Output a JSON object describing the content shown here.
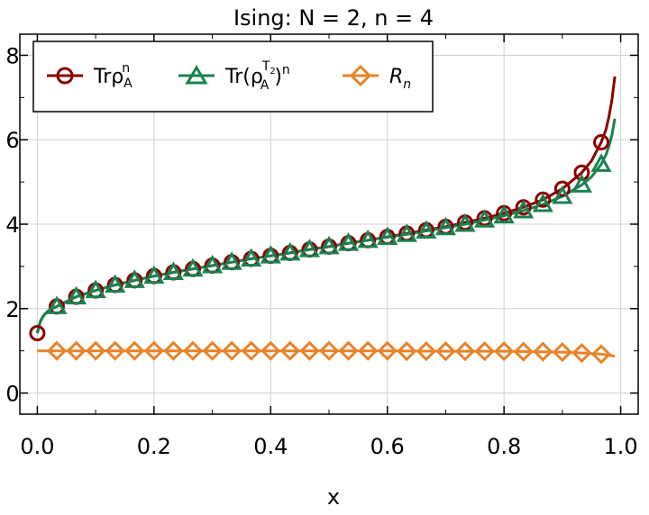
{
  "chart_data": {
    "type": "line",
    "title": "Ising: N = 2, n = 4",
    "xlabel": "x",
    "ylabel": "",
    "xlim": [
      -0.03,
      1.03
    ],
    "ylim": [
      -0.5,
      8.5
    ],
    "xticks": [
      0.0,
      0.2,
      0.4,
      0.6,
      0.8,
      1.0
    ],
    "xtick_labels": [
      "0.0",
      "0.2",
      "0.4",
      "0.6",
      "0.8",
      "1.0"
    ],
    "yticks": [
      0,
      2,
      4,
      6,
      8
    ],
    "ytick_labels": [
      "0",
      "2",
      "4",
      "6",
      "8"
    ],
    "grid": true,
    "legend_position": "top",
    "series": [
      {
        "name": "Trρ_A^n",
        "name_parts": {
          "base": "Trρ",
          "sub": "A",
          "sup": "n"
        },
        "color": "#8b0000",
        "marker": "circle",
        "x": [
          0.0,
          0.0333,
          0.0667,
          0.1,
          0.1333,
          0.1667,
          0.2,
          0.2333,
          0.2667,
          0.3,
          0.3333,
          0.3667,
          0.4,
          0.4333,
          0.4667,
          0.5,
          0.5333,
          0.5667,
          0.6,
          0.6333,
          0.6667,
          0.7,
          0.7333,
          0.7667,
          0.8,
          0.8333,
          0.8667,
          0.9,
          0.9333,
          0.9667
        ],
        "y": [
          1.42,
          2.05,
          2.28,
          2.43,
          2.56,
          2.67,
          2.77,
          2.86,
          2.94,
          3.02,
          3.1,
          3.18,
          3.25,
          3.32,
          3.4,
          3.47,
          3.55,
          3.62,
          3.7,
          3.78,
          3.86,
          3.94,
          4.04,
          4.14,
          4.26,
          4.4,
          4.58,
          4.84,
          5.22,
          5.94
        ],
        "line_x": [
          0.0,
          0.003,
          0.006,
          0.01,
          0.015,
          0.02,
          0.0333,
          0.0667,
          0.1,
          0.1333,
          0.1667,
          0.2,
          0.2333,
          0.2667,
          0.3,
          0.3333,
          0.3667,
          0.4,
          0.4333,
          0.4667,
          0.5,
          0.5333,
          0.5667,
          0.6,
          0.6333,
          0.6667,
          0.7,
          0.7333,
          0.7667,
          0.8,
          0.8333,
          0.8667,
          0.9,
          0.9333,
          0.95,
          0.9667,
          0.975,
          0.98,
          0.985,
          0.99
        ],
        "line_y": [
          1.42,
          1.6,
          1.72,
          1.82,
          1.9,
          1.96,
          2.05,
          2.28,
          2.43,
          2.56,
          2.67,
          2.77,
          2.86,
          2.94,
          3.02,
          3.1,
          3.18,
          3.25,
          3.32,
          3.4,
          3.47,
          3.55,
          3.62,
          3.7,
          3.78,
          3.86,
          3.94,
          4.04,
          4.14,
          4.26,
          4.4,
          4.58,
          4.84,
          5.22,
          5.5,
          5.94,
          6.25,
          6.55,
          6.95,
          7.5
        ]
      },
      {
        "name": "Tr(ρ_A^T2)^n",
        "name_parts": {
          "prefix": "Tr(",
          "base": "ρ",
          "sub": "A",
          "sup": "T",
          "supsub": "2",
          "suffix": ")",
          "outer_sup": "n"
        },
        "color": "#1a8150",
        "marker": "triangle",
        "x": [
          0.0333,
          0.0667,
          0.1,
          0.1333,
          0.1667,
          0.2,
          0.2333,
          0.2667,
          0.3,
          0.3333,
          0.3667,
          0.4,
          0.4333,
          0.4667,
          0.5,
          0.5333,
          0.5667,
          0.6,
          0.6333,
          0.6667,
          0.7,
          0.7333,
          0.7667,
          0.8,
          0.8333,
          0.8667,
          0.9,
          0.9333,
          0.9667
        ],
        "y": [
          2.05,
          2.28,
          2.43,
          2.56,
          2.67,
          2.77,
          2.86,
          2.94,
          3.02,
          3.1,
          3.18,
          3.25,
          3.32,
          3.4,
          3.47,
          3.55,
          3.62,
          3.69,
          3.76,
          3.84,
          3.92,
          4.0,
          4.1,
          4.2,
          4.32,
          4.47,
          4.66,
          4.93,
          5.42
        ],
        "line_x": [
          0.0,
          0.003,
          0.006,
          0.01,
          0.015,
          0.02,
          0.0333,
          0.0667,
          0.1,
          0.1333,
          0.1667,
          0.2,
          0.2333,
          0.2667,
          0.3,
          0.3333,
          0.3667,
          0.4,
          0.4333,
          0.4667,
          0.5,
          0.5333,
          0.5667,
          0.6,
          0.6333,
          0.6667,
          0.7,
          0.7333,
          0.7667,
          0.8,
          0.8333,
          0.8667,
          0.9,
          0.9333,
          0.95,
          0.9667,
          0.975,
          0.98,
          0.985,
          0.99
        ],
        "line_y": [
          1.42,
          1.6,
          1.72,
          1.82,
          1.9,
          1.96,
          2.05,
          2.28,
          2.43,
          2.56,
          2.67,
          2.77,
          2.86,
          2.94,
          3.02,
          3.1,
          3.18,
          3.25,
          3.32,
          3.4,
          3.47,
          3.55,
          3.62,
          3.69,
          3.76,
          3.84,
          3.92,
          4.0,
          4.1,
          4.2,
          4.32,
          4.47,
          4.66,
          4.93,
          5.12,
          5.42,
          5.65,
          5.85,
          6.12,
          6.5
        ]
      },
      {
        "name": "R_n",
        "name_parts": {
          "base": "R",
          "sub": "n"
        },
        "color": "#e8832a",
        "marker": "diamond",
        "x": [
          0.0333,
          0.0667,
          0.1,
          0.1333,
          0.1667,
          0.2,
          0.2333,
          0.2667,
          0.3,
          0.3333,
          0.3667,
          0.4,
          0.4333,
          0.4667,
          0.5,
          0.5333,
          0.5667,
          0.6,
          0.6333,
          0.6667,
          0.7,
          0.7333,
          0.7667,
          0.8,
          0.8333,
          0.8667,
          0.9,
          0.9333,
          0.9667
        ],
        "y": [
          1.0,
          1.0,
          1.0,
          1.0,
          1.0,
          1.0,
          1.0,
          1.0,
          1.0,
          1.0,
          1.0,
          1.0,
          1.0,
          1.0,
          1.0,
          1.0,
          1.0,
          1.0,
          0.99,
          0.99,
          0.99,
          0.99,
          0.99,
          0.99,
          0.98,
          0.98,
          0.97,
          0.95,
          0.92
        ],
        "line_x": [
          0.0,
          0.0333,
          0.1,
          0.2,
          0.3,
          0.4,
          0.5,
          0.6,
          0.7,
          0.8,
          0.85,
          0.9,
          0.9333,
          0.9667,
          0.98,
          0.99
        ],
        "line_y": [
          1.0,
          1.0,
          1.0,
          1.0,
          1.0,
          1.0,
          1.0,
          1.0,
          0.99,
          0.99,
          0.98,
          0.97,
          0.95,
          0.92,
          0.9,
          0.87
        ]
      }
    ]
  }
}
